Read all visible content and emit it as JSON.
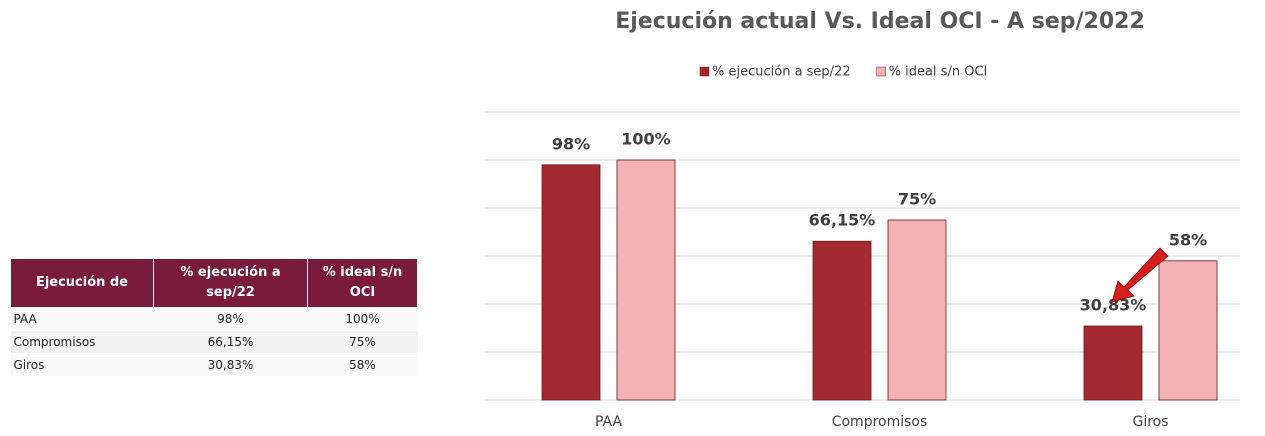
{
  "table": {
    "header": [
      "Ejecución de",
      "% ejecución a sep/22",
      "% ideal s/n OCI"
    ],
    "rows": [
      [
        "PAA",
        "98%",
        "100%"
      ],
      [
        "Compromisos",
        "66,15%",
        "75%"
      ],
      [
        "Giros",
        "30,83%",
        "58%"
      ]
    ]
  },
  "chart_data": {
    "type": "bar",
    "title": "Ejecución actual Vs. Ideal OCI - A sep/2022",
    "categories": [
      "PAA",
      "Compromisos",
      "Giros"
    ],
    "series": [
      {
        "name": "% ejecución a sep/22",
        "color": "#a32a2f",
        "values": [
          98,
          66.15,
          30.83
        ],
        "value_labels": [
          "98%",
          "66,15%",
          "30,83%"
        ]
      },
      {
        "name": "% ideal s/n OCI",
        "color": "#f3b3b6",
        "values": [
          100,
          75,
          58
        ],
        "value_labels": [
          "100%",
          "75%",
          "58%"
        ]
      }
    ],
    "ylim": [
      0,
      120
    ],
    "yticks": [
      0,
      20,
      40,
      60,
      80,
      100,
      120
    ],
    "grid": true,
    "legend": "top"
  }
}
